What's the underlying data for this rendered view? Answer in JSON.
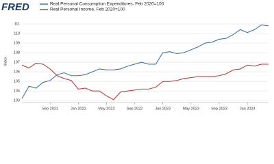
{
  "chart_data": {
    "type": "line",
    "logo": "FRED",
    "y_label": "Index",
    "x": [
      "2021-05",
      "2021-06",
      "2021-07",
      "2021-08",
      "2021-09",
      "2021-10",
      "2021-11",
      "2021-12",
      "2022-01",
      "2022-02",
      "2022-03",
      "2022-04",
      "2022-05",
      "2022-06",
      "2022-07",
      "2022-08",
      "2022-09",
      "2022-10",
      "2022-11",
      "2022-12",
      "2023-01",
      "2023-02",
      "2023-03",
      "2023-04",
      "2023-05",
      "2023-06",
      "2023-07",
      "2023-08",
      "2023-09",
      "2023-10",
      "2023-11",
      "2023-12",
      "2024-01",
      "2024-02",
      "2024-03",
      "2024-04"
    ],
    "series": [
      {
        "name": "Real Personal Consumption Expenditures, Feb 2020=100",
        "color": "#4572a7",
        "values": [
          103.2,
          104.5,
          104.3,
          104.9,
          105.1,
          105.7,
          105.9,
          105.6,
          105.6,
          105.7,
          106.0,
          106.3,
          106.2,
          106.2,
          106.3,
          106.6,
          106.8,
          107.0,
          106.8,
          106.8,
          108.0,
          108.1,
          107.9,
          108.0,
          108.3,
          108.6,
          109.0,
          109.1,
          109.4,
          109.5,
          109.9,
          110.4,
          110.1,
          110.4,
          110.9,
          110.8
        ]
      },
      {
        "name": "Real Personal Income, Feb 2020=100",
        "color": "#aa4643",
        "values": [
          106.7,
          106.4,
          106.9,
          106.8,
          106.3,
          105.6,
          105.3,
          105.1,
          104.2,
          104.3,
          104.0,
          104.0,
          103.5,
          103.1,
          103.9,
          104.0,
          104.1,
          104.2,
          104.2,
          104.4,
          105.0,
          105.0,
          105.1,
          105.3,
          105.4,
          105.5,
          105.5,
          105.5,
          105.6,
          105.8,
          106.2,
          106.3,
          106.7,
          106.6,
          106.8,
          106.8
        ]
      }
    ],
    "xticks": [
      {
        "value": "2021-09",
        "label": "Sep 2021"
      },
      {
        "value": "2022-01",
        "label": "Jan 2022"
      },
      {
        "value": "2022-05",
        "label": "May 2022"
      },
      {
        "value": "2022-09",
        "label": "Sep 2022"
      },
      {
        "value": "2023-01",
        "label": "Jan 2023"
      },
      {
        "value": "2023-05",
        "label": "May 2023"
      },
      {
        "value": "2023-09",
        "label": "Sep 2023"
      },
      {
        "value": "2024-01",
        "label": "Jan 2024"
      }
    ],
    "ylim": [
      102.8,
      111.5
    ],
    "yticks": [
      103,
      104,
      105,
      106,
      107,
      108,
      109,
      110,
      111
    ],
    "grid": true
  }
}
